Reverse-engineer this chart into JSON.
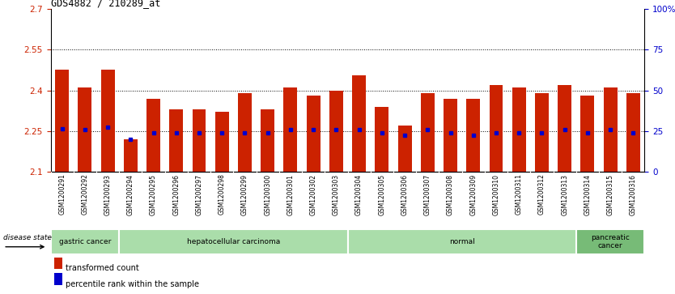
{
  "title": "GDS4882 / 210289_at",
  "samples": [
    "GSM1200291",
    "GSM1200292",
    "GSM1200293",
    "GSM1200294",
    "GSM1200295",
    "GSM1200296",
    "GSM1200297",
    "GSM1200298",
    "GSM1200299",
    "GSM1200300",
    "GSM1200301",
    "GSM1200302",
    "GSM1200303",
    "GSM1200304",
    "GSM1200305",
    "GSM1200306",
    "GSM1200307",
    "GSM1200308",
    "GSM1200309",
    "GSM1200310",
    "GSM1200311",
    "GSM1200312",
    "GSM1200313",
    "GSM1200314",
    "GSM1200315",
    "GSM1200316"
  ],
  "bar_values": [
    2.475,
    2.41,
    2.475,
    2.22,
    2.37,
    2.33,
    2.33,
    2.32,
    2.39,
    2.33,
    2.41,
    2.38,
    2.4,
    2.455,
    2.34,
    2.27,
    2.39,
    2.37,
    2.37,
    2.42,
    2.41,
    2.39,
    2.42,
    2.38,
    2.41,
    2.39
  ],
  "percentile_values": [
    2.26,
    2.255,
    2.265,
    2.22,
    2.245,
    2.245,
    2.245,
    2.245,
    2.245,
    2.245,
    2.255,
    2.255,
    2.255,
    2.255,
    2.245,
    2.235,
    2.255,
    2.245,
    2.235,
    2.245,
    2.245,
    2.245,
    2.255,
    2.245,
    2.255,
    2.245
  ],
  "ymin": 2.1,
  "ymax": 2.7,
  "yticks": [
    2.1,
    2.25,
    2.4,
    2.55,
    2.7
  ],
  "ytick_labels": [
    "2.1",
    "2.25",
    "2.4",
    "2.55",
    "2.7"
  ],
  "right_yticks": [
    0,
    25,
    50,
    75,
    100
  ],
  "right_ytick_labels": [
    "0",
    "25",
    "50",
    "75",
    "100%"
  ],
  "dotted_lines": [
    2.25,
    2.4,
    2.55
  ],
  "bar_color": "#cc2200",
  "percentile_color": "#0000cc",
  "disease_groups": [
    {
      "label": "gastric cancer",
      "start": 0,
      "end": 3,
      "color": "#aaddaa"
    },
    {
      "label": "hepatocellular carcinoma",
      "start": 3,
      "end": 13,
      "color": "#aaddaa"
    },
    {
      "label": "normal",
      "start": 13,
      "end": 23,
      "color": "#aaddaa"
    },
    {
      "label": "pancreatic\ncancer",
      "start": 23,
      "end": 26,
      "color": "#77bb77"
    }
  ],
  "legend_items": [
    {
      "label": "transformed count",
      "color": "#cc2200"
    },
    {
      "label": "percentile rank within the sample",
      "color": "#0000cc"
    }
  ],
  "disease_state_label": "disease state",
  "tick_label_color_left": "#cc2200",
  "tick_label_color_right": "#0000cc",
  "xtick_bg": "#cccccc"
}
